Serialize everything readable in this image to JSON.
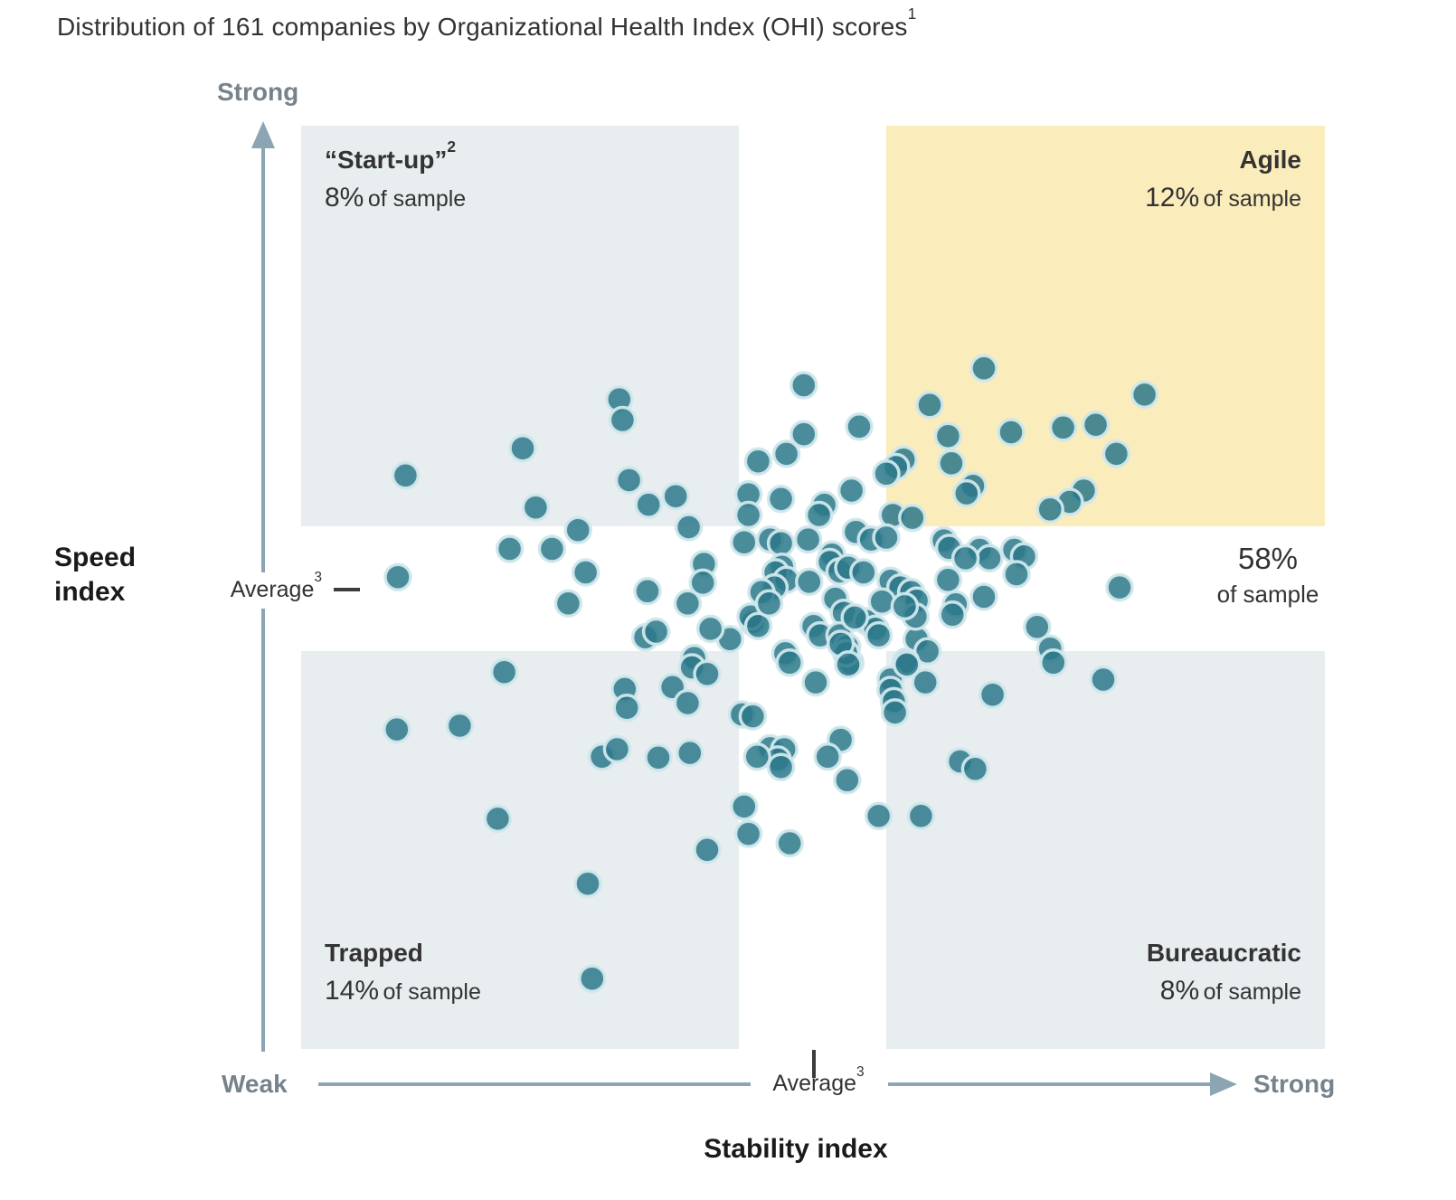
{
  "title": {
    "text": "Distribution of 161 companies by Organizational Health Index (OHI) scores",
    "footnote": "1"
  },
  "colors": {
    "dot_fill": "rgba(44,120,137,0.85)",
    "dot_ring": "rgba(208,232,236,0.95)",
    "quadrant_gray": "#e8edf0",
    "quadrant_highlight": "#fbecbb",
    "axis": "#8ba6b2",
    "label_gray": "#76838c",
    "text": "#333333"
  },
  "chart_data": {
    "type": "scatter",
    "title": "Distribution of 161 companies by Organizational Health Index (OHI) scores",
    "sample_size": 161,
    "x_axis": {
      "label": "Stability index",
      "min_label": "Weak",
      "max_label": "Strong",
      "average_label": "Average",
      "average_footnote": "3",
      "range": [
        0,
        100
      ],
      "average_value": 50.8
    },
    "y_axis": {
      "label": "Speed index",
      "max_label": "Strong",
      "average_label": "Average",
      "average_footnote": "3",
      "range": [
        0,
        100
      ],
      "average_value": 51.0
    },
    "legend": "none",
    "grid": false,
    "quadrants": {
      "startup": {
        "name": "“Start-up”",
        "footnote": "2",
        "pct": "8%",
        "pct_value": 8,
        "suffix": "of sample",
        "position": "top-left",
        "fill": "gray"
      },
      "agile": {
        "name": "Agile",
        "pct": "12%",
        "pct_value": 12,
        "suffix": "of sample",
        "position": "top-right",
        "fill": "highlight"
      },
      "middle": {
        "pct": "58%",
        "pct_value": 58,
        "suffix": "of sample",
        "position": "center-right"
      },
      "trapped": {
        "name": "Trapped",
        "pct": "14%",
        "pct_value": 14,
        "suffix": "of sample",
        "position": "bottom-left",
        "fill": "gray"
      },
      "bureaucratic": {
        "name": "Bureaucratic",
        "pct": "8%",
        "pct_value": 8,
        "suffix": "of sample",
        "position": "bottom-right",
        "fill": "gray"
      }
    },
    "points_format": [
      "stability_index_0_to_100",
      "speed_index_0_to_100"
    ],
    "points": [
      [
        32.9,
        71.0
      ],
      [
        33.2,
        68.8
      ],
      [
        24.0,
        65.8
      ],
      [
        13.2,
        62.9
      ],
      [
        33.8,
        62.4
      ],
      [
        35.6,
        59.8
      ],
      [
        38.1,
        60.7
      ],
      [
        25.2,
        59.5
      ],
      [
        29.1,
        57.1
      ],
      [
        39.3,
        57.4
      ],
      [
        22.8,
        55.1
      ],
      [
        26.7,
        55.1
      ],
      [
        29.8,
        52.6
      ],
      [
        12.5,
        52.1
      ],
      [
        35.5,
        50.6
      ],
      [
        28.2,
        49.3
      ],
      [
        40.7,
        53.5
      ],
      [
        40.6,
        51.5
      ],
      [
        39.2,
        49.3
      ],
      [
        35.3,
        45.7
      ],
      [
        36.3,
        46.3
      ],
      [
        43.1,
        45.5
      ],
      [
        41.3,
        46.6
      ],
      [
        45.2,
        47.3
      ],
      [
        45.7,
        64.4
      ],
      [
        44.8,
        60.9
      ],
      [
        44.8,
        58.7
      ],
      [
        44.4,
        55.8
      ],
      [
        39.8,
        43.5
      ],
      [
        49.9,
        72.5
      ],
      [
        66.5,
        74.3
      ],
      [
        81.3,
        71.5
      ],
      [
        61.5,
        70.4
      ],
      [
        49.9,
        67.3
      ],
      [
        55.0,
        68.1
      ],
      [
        63.2,
        67.1
      ],
      [
        69.0,
        67.5
      ],
      [
        73.8,
        68.0
      ],
      [
        76.8,
        68.3
      ],
      [
        78.7,
        65.2
      ],
      [
        48.3,
        65.2
      ],
      [
        59.1,
        64.6
      ],
      [
        58.4,
        63.8
      ],
      [
        63.5,
        64.2
      ],
      [
        57.5,
        63.1
      ],
      [
        65.5,
        61.8
      ],
      [
        64.9,
        61.0
      ],
      [
        47.8,
        60.4
      ],
      [
        54.3,
        61.3
      ],
      [
        75.7,
        61.3
      ],
      [
        74.4,
        60.1
      ],
      [
        72.6,
        59.3
      ],
      [
        51.8,
        59.8
      ],
      [
        51.3,
        58.7
      ],
      [
        58.1,
        58.7
      ],
      [
        59.9,
        58.4
      ],
      [
        46.8,
        56.1
      ],
      [
        47.8,
        55.7
      ],
      [
        50.3,
        56.1
      ],
      [
        54.7,
        56.9
      ],
      [
        56.1,
        56.1
      ],
      [
        57.5,
        56.3
      ],
      [
        62.8,
        56.0
      ],
      [
        63.3,
        55.2
      ],
      [
        66.1,
        55.0
      ],
      [
        67.0,
        54.1
      ],
      [
        69.3,
        55.0
      ],
      [
        70.2,
        54.3
      ],
      [
        69.5,
        52.4
      ],
      [
        52.5,
        54.5
      ],
      [
        52.3,
        53.7
      ],
      [
        53.2,
        52.7
      ],
      [
        54.0,
        53.1
      ],
      [
        47.9,
        53.2
      ],
      [
        47.3,
        52.6
      ],
      [
        48.3,
        51.8
      ],
      [
        47.2,
        51.0
      ],
      [
        50.4,
        51.6
      ],
      [
        55.4,
        52.6
      ],
      [
        57.9,
        51.7
      ],
      [
        58.8,
        51.0
      ],
      [
        59.8,
        50.5
      ],
      [
        60.3,
        49.6
      ],
      [
        63.2,
        51.8
      ],
      [
        63.9,
        49.2
      ],
      [
        66.5,
        50.0
      ],
      [
        64.8,
        54.1
      ],
      [
        79.0,
        51.0
      ],
      [
        52.8,
        49.8
      ],
      [
        53.6,
        48.3
      ],
      [
        55.7,
        47.4
      ],
      [
        56.5,
        46.6
      ],
      [
        71.4,
        46.8
      ],
      [
        72.6,
        44.5
      ],
      [
        50.8,
        46.9
      ],
      [
        51.4,
        45.9
      ],
      [
        53.2,
        45.9
      ],
      [
        53.9,
        44.7
      ],
      [
        60.3,
        45.5
      ],
      [
        63.6,
        48.1
      ],
      [
        60.2,
        47.9
      ],
      [
        57.1,
        49.5
      ],
      [
        59.2,
        49.0
      ],
      [
        54.6,
        47.8
      ],
      [
        56.8,
        45.9
      ],
      [
        45.0,
        47.9
      ],
      [
        45.7,
        46.9
      ],
      [
        46.0,
        50.5
      ],
      [
        46.7,
        49.3
      ],
      [
        61.3,
        44.2
      ],
      [
        59.3,
        43.1
      ],
      [
        54.2,
        43.0
      ],
      [
        53.8,
        44.0
      ],
      [
        53.3,
        45.0
      ],
      [
        48.2,
        44.0
      ],
      [
        48.6,
        43.0
      ],
      [
        51.0,
        40.9
      ],
      [
        54.0,
        42.8
      ],
      [
        57.9,
        41.2
      ],
      [
        57.9,
        40.1
      ],
      [
        58.2,
        38.9
      ],
      [
        58.3,
        37.7
      ],
      [
        59.4,
        42.8
      ],
      [
        61.1,
        40.9
      ],
      [
        67.3,
        39.6
      ],
      [
        72.9,
        43.0
      ],
      [
        77.5,
        41.2
      ],
      [
        46.8,
        33.9
      ],
      [
        48.1,
        33.8
      ],
      [
        47.5,
        32.7
      ],
      [
        47.8,
        31.9
      ],
      [
        53.3,
        34.8
      ],
      [
        52.1,
        33.0
      ],
      [
        53.9,
        30.5
      ],
      [
        64.3,
        32.5
      ],
      [
        65.7,
        31.7
      ],
      [
        56.8,
        26.7
      ],
      [
        60.7,
        26.7
      ],
      [
        48.6,
        23.8
      ],
      [
        22.3,
        42.0
      ],
      [
        39.6,
        42.5
      ],
      [
        41.0,
        41.8
      ],
      [
        37.8,
        40.4
      ],
      [
        33.4,
        40.2
      ],
      [
        33.6,
        38.2
      ],
      [
        39.2,
        38.7
      ],
      [
        44.2,
        37.5
      ],
      [
        45.2,
        37.3
      ],
      [
        12.4,
        35.9
      ],
      [
        18.2,
        36.3
      ],
      [
        31.3,
        33.0
      ],
      [
        32.7,
        33.8
      ],
      [
        36.5,
        32.9
      ],
      [
        39.4,
        33.4
      ],
      [
        45.6,
        33.0
      ],
      [
        21.7,
        26.4
      ],
      [
        44.4,
        27.7
      ],
      [
        44.8,
        24.8
      ],
      [
        41.0,
        23.1
      ],
      [
        30.0,
        19.5
      ],
      [
        30.4,
        9.4
      ]
    ]
  }
}
